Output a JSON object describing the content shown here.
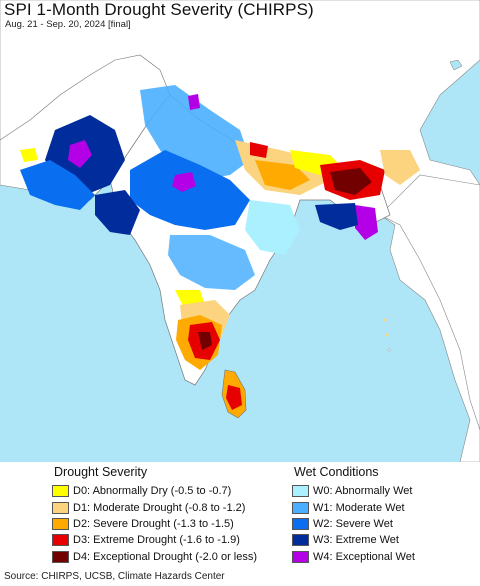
{
  "header": {
    "title": "SPI 1-Month Drought Severity (CHIRPS)",
    "subtitle": "Aug. 21 - Sep. 20, 2024 [final]"
  },
  "colors": {
    "ocean": "#aee6f7",
    "land_outside": "#ffffff",
    "normal": "#ffffff",
    "border": "#777777"
  },
  "legend": {
    "drought": {
      "title": "Drought Severity",
      "items": [
        {
          "label": "D0: Abnormally Dry (-0.5 to -0.7)",
          "color": "#ffff00"
        },
        {
          "label": "D1: Moderate Drought (-0.8 to -1.2)",
          "color": "#fcd37f"
        },
        {
          "label": "D2: Severe Drought (-1.3 to -1.5)",
          "color": "#ffaa00"
        },
        {
          "label": "D3: Extreme Drought (-1.6 to -1.9)",
          "color": "#e60000"
        },
        {
          "label": "D4: Exceptional Drought (-2.0 or less)",
          "color": "#730000"
        }
      ]
    },
    "wet": {
      "title": "Wet Conditions",
      "items": [
        {
          "label": "W0: Abnormally Wet",
          "color": "#aaf0ff"
        },
        {
          "label": "W1: Moderate Wet",
          "color": "#4bafff"
        },
        {
          "label": "W2: Severe Wet",
          "color": "#0a6ef0"
        },
        {
          "label": "W3: Extreme Wet",
          "color": "#002d9b"
        },
        {
          "label": "W4: Exceptional Wet",
          "color": "#b400e6"
        }
      ]
    }
  },
  "footer": {
    "source": "Source: CHIRPS, UCSB, Climate Hazards Center"
  }
}
